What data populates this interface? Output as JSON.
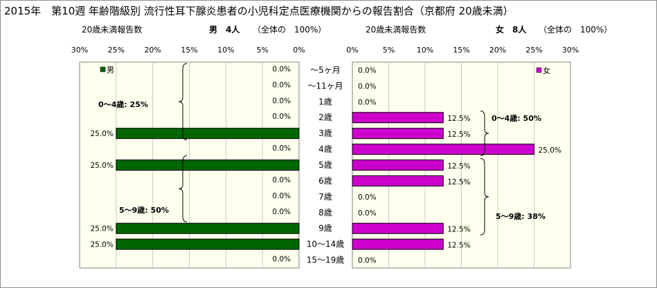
{
  "title": "2015年　第10週 年齢階級別 流行性耳下腺炎患者の小児科定点医療機関からの報告割合（京都府 20歳未満）",
  "male_header": {
    "left_label": "20歳未満報告数",
    "count_label": "男　4人",
    "share_label": "（全体の　100%）"
  },
  "female_header": {
    "left_label": "20歳未満報告数",
    "count_label": "女　8人",
    "share_label": "（全体の　100%）"
  },
  "colors": {
    "male": "#006600",
    "female": "#cc00cc",
    "plot_bg": "#ffffee",
    "grid": "#c8c8c8"
  },
  "chart_data": [
    {
      "type": "bar",
      "orientation": "horizontal",
      "direction": "right-to-left",
      "categories": [
        "～5ヶ月",
        "～11ヶ月",
        "1歳",
        "2歳",
        "3歳",
        "4歳",
        "5歳",
        "6歳",
        "7歳",
        "8歳",
        "9歳",
        "10～14歳",
        "15～19歳"
      ],
      "series": [
        {
          "name": "男",
          "values": [
            0,
            0,
            0,
            0,
            25,
            0,
            25,
            0,
            0,
            0,
            25,
            25,
            0
          ],
          "labels": [
            "0.0%",
            "0.0%",
            "0.0%",
            "0.0%",
            "25.0%",
            "0.0%",
            "25.0%",
            "0.0%",
            "0.0%",
            "0.0%",
            "25.0%",
            "25.0%",
            "0.0%"
          ]
        }
      ],
      "xlim": [
        0,
        30
      ],
      "xticks": [
        "0%",
        "5%",
        "10%",
        "15%",
        "20%",
        "25%",
        "30%"
      ],
      "grid": true,
      "legend": "top-left",
      "annotations": [
        "0～4歳: 25%",
        "5～9歳: 50%"
      ]
    },
    {
      "type": "bar",
      "orientation": "horizontal",
      "direction": "left-to-right",
      "categories": [
        "～5ヶ月",
        "～11ヶ月",
        "1歳",
        "2歳",
        "3歳",
        "4歳",
        "5歳",
        "6歳",
        "7歳",
        "8歳",
        "9歳",
        "10～14歳",
        "15～19歳"
      ],
      "series": [
        {
          "name": "女",
          "values": [
            0,
            0,
            0,
            12.5,
            12.5,
            25,
            12.5,
            12.5,
            0,
            0,
            12.5,
            12.5,
            0
          ],
          "labels": [
            "0.0%",
            "0.0%",
            "0.0%",
            "12.5%",
            "12.5%",
            "25.0%",
            "12.5%",
            "12.5%",
            "0.0%",
            "0.0%",
            "12.5%",
            "12.5%",
            "0.0%"
          ]
        }
      ],
      "xlim": [
        0,
        30
      ],
      "xticks": [
        "0%",
        "5%",
        "10%",
        "15%",
        "20%",
        "25%",
        "30%"
      ],
      "grid": true,
      "legend": "top-right",
      "annotations": [
        "0～4歳: 50%",
        "5～9歳: 38%"
      ]
    }
  ]
}
